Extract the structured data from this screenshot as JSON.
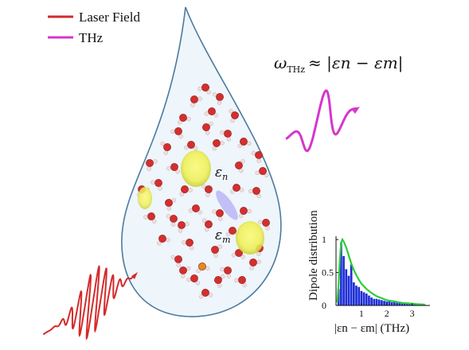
{
  "legend": {
    "laser_label": "Laser Field",
    "thz_label": "THz",
    "laser_color": "#d42a2a",
    "thz_color": "#d636cc"
  },
  "equation": {
    "omega": "ω",
    "omega_sub": "THz",
    "rhs": "≈ |εn − εm|"
  },
  "state_labels": {
    "n_base": "ε",
    "n_sub": "n",
    "m_base": "ε",
    "m_sub": "m"
  },
  "inset": {
    "ylabel": "Dipole distribution",
    "xlabel": "|εn − εm| (THz)",
    "bar_color": "#1f2fd6",
    "curve_color": "#2ecc3a"
  },
  "chart_data": {
    "type": "bar",
    "ylabel": "Dipole distribution",
    "xlabel": "|εn − εm| (THz)",
    "xticks": [
      1,
      2,
      3
    ],
    "yticks": [
      0,
      0.5,
      1
    ],
    "xlim": [
      0,
      3.7
    ],
    "ylim": [
      0,
      1.05
    ],
    "bars": {
      "x": [
        0.1,
        0.2,
        0.3,
        0.4,
        0.5,
        0.6,
        0.7,
        0.8,
        0.9,
        1.0,
        1.1,
        1.2,
        1.3,
        1.4,
        1.5,
        1.6,
        1.7,
        1.8,
        1.9,
        2.0,
        2.1,
        2.2,
        2.3,
        2.4,
        2.5,
        2.6,
        2.7,
        2.8,
        2.9,
        3.0,
        3.1,
        3.2,
        3.3,
        3.4,
        3.5
      ],
      "values": [
        0.25,
        0.95,
        0.75,
        0.55,
        0.45,
        0.62,
        0.35,
        0.3,
        0.28,
        0.22,
        0.2,
        0.18,
        0.15,
        0.12,
        0.1,
        0.1,
        0.09,
        0.08,
        0.07,
        0.06,
        0.06,
        0.05,
        0.05,
        0.04,
        0.04,
        0.03,
        0.03,
        0.03,
        0.02,
        0.02,
        0.02,
        0.02,
        0.01,
        0.01,
        0.01
      ]
    },
    "fit_curve": {
      "x": [
        0.05,
        0.1,
        0.15,
        0.2,
        0.25,
        0.3,
        0.4,
        0.5,
        0.6,
        0.7,
        0.8,
        0.9,
        1.0,
        1.2,
        1.4,
        1.6,
        1.8,
        2.0,
        2.3,
        2.6,
        2.9,
        3.2,
        3.5
      ],
      "values": [
        0.05,
        0.3,
        0.7,
        0.95,
        1.0,
        0.97,
        0.88,
        0.76,
        0.64,
        0.54,
        0.46,
        0.39,
        0.33,
        0.25,
        0.19,
        0.14,
        0.11,
        0.08,
        0.06,
        0.04,
        0.03,
        0.02,
        0.015
      ]
    }
  }
}
